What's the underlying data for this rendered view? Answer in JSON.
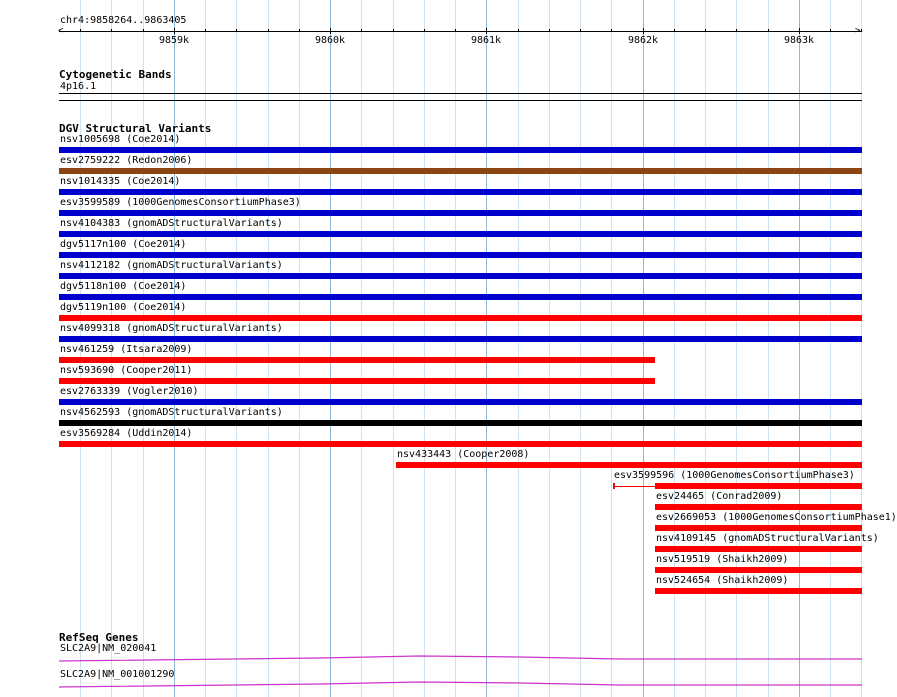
{
  "ruler": {
    "location": "chr4:9858264..9863405",
    "start": 9858264,
    "end": 9863405,
    "ticks": [
      "9859k",
      "9860k",
      "9861k",
      "9862k",
      "9863k"
    ]
  },
  "tracks": {
    "cytoband": {
      "title": "Cytogenetic Bands",
      "band": "4p16.1"
    },
    "dgv": {
      "title": "DGV Structural Variants",
      "features": [
        {
          "label": "nsv1005698 (Coe2014)",
          "color": "#0000cc",
          "start": 9858264,
          "end": 9863405
        },
        {
          "label": "esv2759222 (Redon2006)",
          "color": "#8b4513",
          "start": 9858264,
          "end": 9863405
        },
        {
          "label": "nsv1014335 (Coe2014)",
          "color": "#0000cc",
          "start": 9858264,
          "end": 9863405
        },
        {
          "label": "esv3599589 (1000GenomesConsortiumPhase3)",
          "color": "#0000cc",
          "start": 9858264,
          "end": 9863405
        },
        {
          "label": "nsv4104383 (gnomADStructuralVariants)",
          "color": "#0000cc",
          "start": 9858264,
          "end": 9863405
        },
        {
          "label": "dgv5117n100 (Coe2014)",
          "color": "#0000cc",
          "start": 9858264,
          "end": 9863405
        },
        {
          "label": "nsv4112182 (gnomADStructuralVariants)",
          "color": "#0000cc",
          "start": 9858264,
          "end": 9863405
        },
        {
          "label": "dgv5118n100 (Coe2014)",
          "color": "#0000cc",
          "start": 9858264,
          "end": 9863405
        },
        {
          "label": "dgv5119n100 (Coe2014)",
          "color": "#ff0000",
          "start": 9858264,
          "end": 9863405
        },
        {
          "label": "nsv4099318 (gnomADStructuralVariants)",
          "color": "#0000cc",
          "start": 9858264,
          "end": 9863405
        },
        {
          "label": "nsv461259 (Itsara2009)",
          "color": "#ff0000",
          "start": 9858264,
          "end": 9862080
        },
        {
          "label": "nsv593690 (Cooper2011)",
          "color": "#ff0000",
          "start": 9858264,
          "end": 9862080
        },
        {
          "label": "esv2763339 (Vogler2010)",
          "color": "#0000cc",
          "start": 9858264,
          "end": 9863405
        },
        {
          "label": "nsv4562593 (gnomADStructuralVariants)",
          "color": "#000000",
          "start": 9858264,
          "end": 9863405
        },
        {
          "label": "esv3569284 (Uddin2014)",
          "color": "#ff0000",
          "start": 9858264,
          "end": 9863405
        },
        {
          "label": "nsv433443 (Cooper2008)",
          "color": "#ff0000",
          "start": 9860420,
          "end": 9863405
        },
        {
          "label": "esv3599596 (1000GenomesConsortiumPhase3)",
          "color": "#ff0000",
          "start": 9861810,
          "end": 9863405,
          "thinUntil": 9862080
        },
        {
          "label": "esv24465 (Conrad2009)",
          "color": "#ff0000",
          "start": 9862080,
          "end": 9863405
        },
        {
          "label": "esv2669053 (1000GenomesConsortiumPhase1)",
          "color": "#ff0000",
          "start": 9862080,
          "end": 9863405
        },
        {
          "label": "nsv4109145 (gnomADStructuralVariants)",
          "color": "#ff0000",
          "start": 9862080,
          "end": 9863405
        },
        {
          "label": "nsv519519 (Shaikh2009)",
          "color": "#ff0000",
          "start": 9862080,
          "end": 9863405
        },
        {
          "label": "nsv524654 (Shaikh2009)",
          "color": "#ff0000",
          "start": 9862080,
          "end": 9863405
        }
      ]
    },
    "refseq": {
      "title": "RefSeq Genes",
      "genes": [
        {
          "label": "SLC2A9|NM_020041",
          "color": "#cc33cc"
        },
        {
          "label": "SLC2A9|NM_001001290",
          "color": "#cc33cc"
        }
      ]
    }
  }
}
